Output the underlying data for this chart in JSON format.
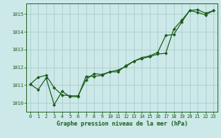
{
  "xlabel": "Graphe pression niveau de la mer (hPa)",
  "background_color": "#cce8e8",
  "plot_bg_color": "#cce8e8",
  "grid_color": "#aacccc",
  "line_color": "#1a5c1a",
  "marker_color": "#1a5c1a",
  "xlim": [
    -0.5,
    23.5
  ],
  "ylim": [
    1009.5,
    1015.6
  ],
  "yticks": [
    1010,
    1011,
    1012,
    1013,
    1014,
    1015
  ],
  "xticks": [
    0,
    1,
    2,
    3,
    4,
    5,
    6,
    7,
    8,
    9,
    10,
    11,
    12,
    13,
    14,
    15,
    16,
    17,
    18,
    19,
    20,
    21,
    22,
    23
  ],
  "series1_x": [
    0,
    1,
    2,
    3,
    4,
    5,
    6,
    7,
    8,
    9,
    10,
    11,
    12,
    13,
    14,
    15,
    16,
    17,
    18,
    19,
    20,
    21,
    22,
    23
  ],
  "series1_y": [
    1011.05,
    1011.45,
    1011.55,
    1010.85,
    1010.45,
    1010.4,
    1010.4,
    1011.3,
    1011.65,
    1011.6,
    1011.75,
    1011.85,
    1012.05,
    1012.35,
    1012.5,
    1012.6,
    1012.75,
    1012.8,
    1014.15,
    1014.65,
    1015.2,
    1015.25,
    1015.05,
    1015.2
  ],
  "series2_x": [
    0,
    1,
    2,
    3,
    4,
    5,
    6,
    7,
    8,
    9,
    10,
    11,
    12,
    13,
    14,
    15,
    16,
    17,
    18,
    19,
    20,
    21,
    22,
    23
  ],
  "series2_y": [
    1011.05,
    1010.75,
    1011.4,
    1009.9,
    1010.65,
    1010.35,
    1010.35,
    1011.5,
    1011.5,
    1011.55,
    1011.75,
    1011.75,
    1012.1,
    1012.35,
    1012.55,
    1012.65,
    1012.85,
    1013.8,
    1013.85,
    1014.55,
    1015.2,
    1015.1,
    1014.95,
    1015.2
  ]
}
